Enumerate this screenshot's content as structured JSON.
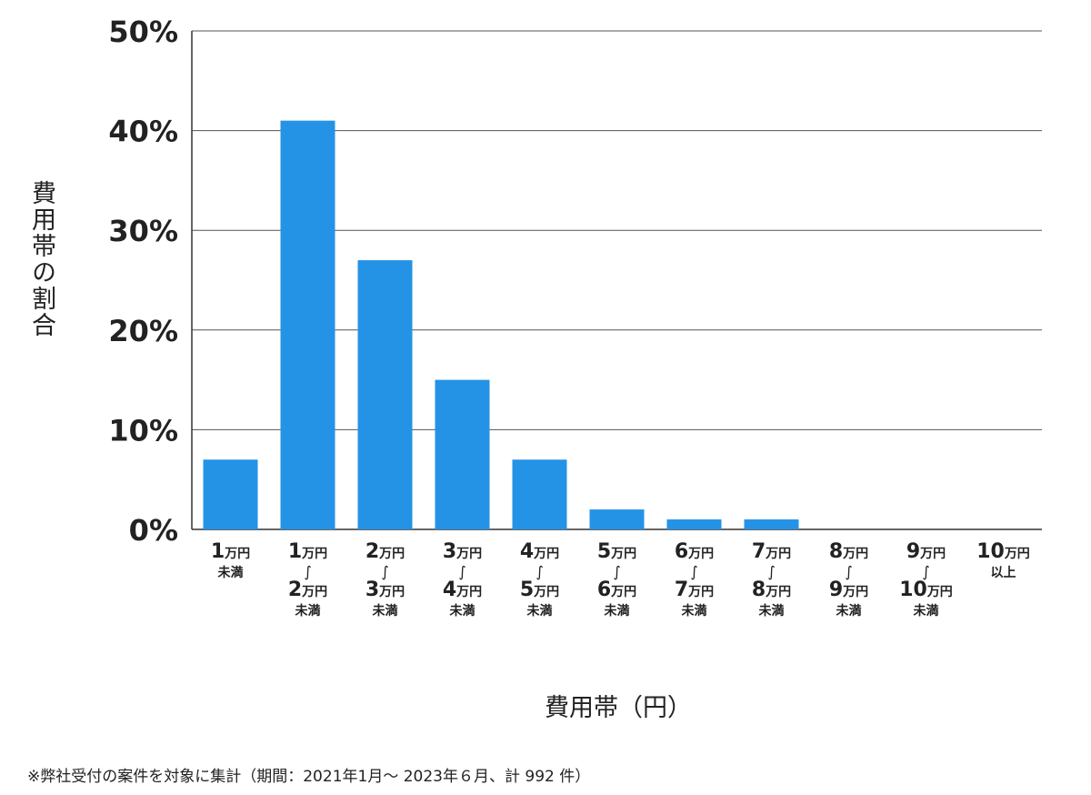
{
  "chart_data": {
    "type": "bar",
    "ylabel": "費用帯の割合",
    "xlabel": "費用帯（円）",
    "y_ticks": [
      "0%",
      "10%",
      "20%",
      "30%",
      "40%",
      "50%"
    ],
    "ylim": [
      0,
      50
    ],
    "y_unit": "%",
    "grid": true,
    "bar_color": "#2493e6",
    "categories": [
      {
        "lines": [
          [
            "1",
            "万円"
          ],
          [
            "未満"
          ]
        ]
      },
      {
        "lines": [
          [
            "1",
            "万円"
          ],
          [
            "∫"
          ],
          [
            "2",
            "万円"
          ],
          [
            "未満"
          ]
        ]
      },
      {
        "lines": [
          [
            "2",
            "万円"
          ],
          [
            "∫"
          ],
          [
            "3",
            "万円"
          ],
          [
            "未満"
          ]
        ]
      },
      {
        "lines": [
          [
            "3",
            "万円"
          ],
          [
            "∫"
          ],
          [
            "4",
            "万円"
          ],
          [
            "未満"
          ]
        ]
      },
      {
        "lines": [
          [
            "4",
            "万円"
          ],
          [
            "∫"
          ],
          [
            "5",
            "万円"
          ],
          [
            "未満"
          ]
        ]
      },
      {
        "lines": [
          [
            "5",
            "万円"
          ],
          [
            "∫"
          ],
          [
            "6",
            "万円"
          ],
          [
            "未満"
          ]
        ]
      },
      {
        "lines": [
          [
            "6",
            "万円"
          ],
          [
            "∫"
          ],
          [
            "7",
            "万円"
          ],
          [
            "未満"
          ]
        ]
      },
      {
        "lines": [
          [
            "7",
            "万円"
          ],
          [
            "∫"
          ],
          [
            "8",
            "万円"
          ],
          [
            "未満"
          ]
        ]
      },
      {
        "lines": [
          [
            "8",
            "万円"
          ],
          [
            "∫"
          ],
          [
            "9",
            "万円"
          ],
          [
            "未満"
          ]
        ]
      },
      {
        "lines": [
          [
            "9",
            "万円"
          ],
          [
            "∫"
          ],
          [
            "10",
            "万円"
          ],
          [
            "未満"
          ]
        ]
      },
      {
        "lines": [
          [
            "10",
            "万円"
          ],
          [
            "以上"
          ]
        ]
      }
    ],
    "values": [
      7,
      41,
      27,
      15,
      7,
      2,
      1,
      1,
      0,
      0,
      0
    ]
  },
  "footnote": "※弊社受付の案件を対象に集計（期間：2021年1月～ 2023年６月、計 992 件）"
}
